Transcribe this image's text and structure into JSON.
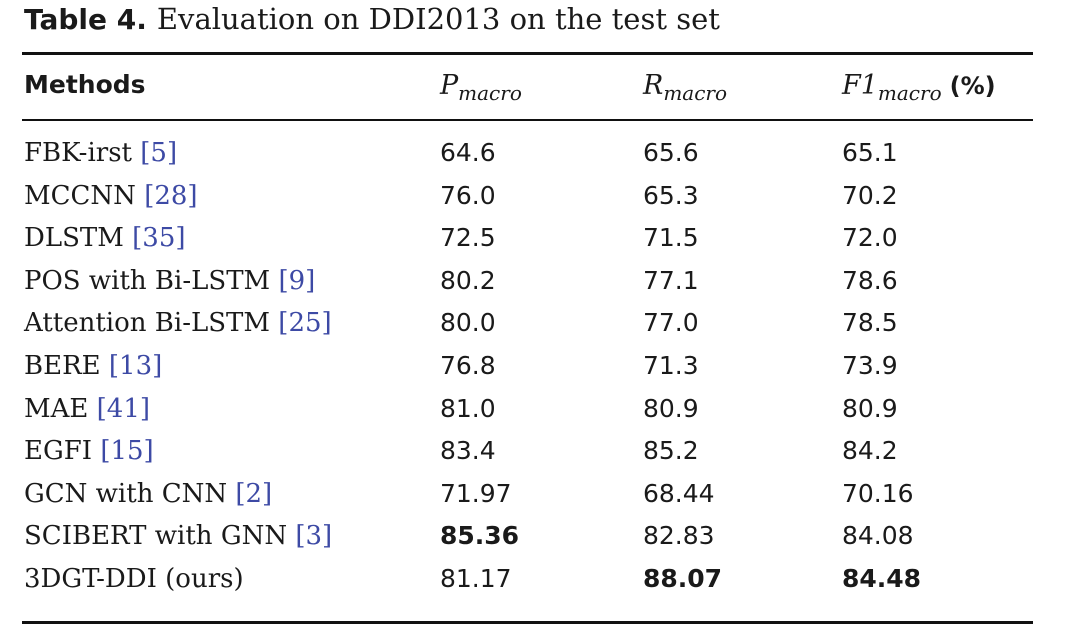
{
  "caption": {
    "label": "Table 4.",
    "text": "Evaluation on DDI2013 on the test set"
  },
  "header": {
    "methods": "Methods",
    "p_base": "P",
    "p_sub": "macro",
    "r_base": "R",
    "r_sub": "macro",
    "f1_base": "F1",
    "f1_sub": "macro",
    "f1_unit": "(%)"
  },
  "rows": [
    {
      "name": "FBK-irst ",
      "ref": "[5]",
      "p": "64.6",
      "r": "65.6",
      "f1": "65.1",
      "bold": []
    },
    {
      "name": "MCCNN ",
      "ref": "[28]",
      "p": "76.0",
      "r": "65.3",
      "f1": "70.2",
      "bold": []
    },
    {
      "name": "DLSTM ",
      "ref": "[35]",
      "p": "72.5",
      "r": "71.5",
      "f1": "72.0",
      "bold": []
    },
    {
      "name": "POS with Bi-LSTM ",
      "ref": "[9]",
      "p": "80.2",
      "r": "77.1",
      "f1": "78.6",
      "bold": []
    },
    {
      "name": "Attention Bi-LSTM ",
      "ref": "[25]",
      "p": "80.0",
      "r": "77.0",
      "f1": "78.5",
      "bold": []
    },
    {
      "name": "BERE ",
      "ref": "[13]",
      "p": "76.8",
      "r": "71.3",
      "f1": "73.9",
      "bold": []
    },
    {
      "name": "MAE ",
      "ref": "[41]",
      "p": "81.0",
      "r": "80.9",
      "f1": "80.9",
      "bold": []
    },
    {
      "name": "EGFI ",
      "ref": "[15]",
      "p": "83.4",
      "r": "85.2",
      "f1": "84.2",
      "bold": []
    },
    {
      "name": "GCN with CNN ",
      "ref": "[2]",
      "p": "71.97",
      "r": "68.44",
      "f1": "70.16",
      "bold": []
    },
    {
      "name": "SCIBERT with GNN ",
      "ref": "[3]",
      "p": "85.36",
      "r": "82.83",
      "f1": "84.08",
      "bold": [
        "p"
      ]
    },
    {
      "name": "3DGT-DDI (ours)",
      "ref": "",
      "p": "81.17",
      "r": "88.07",
      "f1": "84.48",
      "bold": [
        "r",
        "f1"
      ]
    }
  ]
}
